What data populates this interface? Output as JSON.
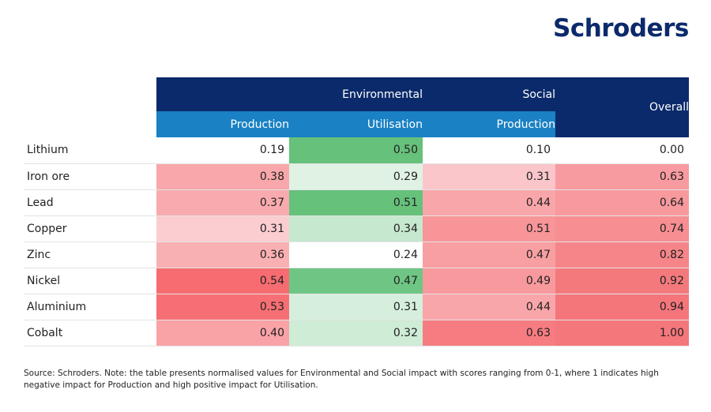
{
  "brand": {
    "logo_text": "Schroders",
    "colors": {
      "navy": "#0b2a6b",
      "blue": "#1a81c4"
    }
  },
  "chart_data": {
    "type": "table",
    "group_headers": [
      "Environmental",
      "Social",
      "Overall"
    ],
    "columns": [
      "Production",
      "Utilisation",
      "Production",
      "Overall"
    ],
    "rows": [
      "Lithium",
      "Iron ore",
      "Lead",
      "Copper",
      "Zinc",
      "Nickel",
      "Aluminium",
      "Cobalt"
    ],
    "values": [
      [
        "0.19",
        "0.50",
        "0.10",
        "0.00"
      ],
      [
        "0.38",
        "0.29",
        "0.31",
        "0.63"
      ],
      [
        "0.37",
        "0.51",
        "0.44",
        "0.64"
      ],
      [
        "0.31",
        "0.34",
        "0.51",
        "0.74"
      ],
      [
        "0.36",
        "0.24",
        "0.47",
        "0.82"
      ],
      [
        "0.54",
        "0.47",
        "0.49",
        "0.92"
      ],
      [
        "0.53",
        "0.31",
        "0.44",
        "0.94"
      ],
      [
        "0.40",
        "0.32",
        "0.63",
        "1.00"
      ]
    ],
    "cell_colors": [
      [
        "#ffffff",
        "#66c17b",
        "#ffffff",
        "#ffffff"
      ],
      [
        "#f9a7ab",
        "#dff2e4",
        "#fac6ca",
        "#f89ba0"
      ],
      [
        "#f9aaae",
        "#66c17b",
        "#f9a6aa",
        "#f8999e"
      ],
      [
        "#fbccd0",
        "#c6e8cf",
        "#f79598",
        "#f78e92"
      ],
      [
        "#f9b0b3",
        "#ffffff",
        "#f89fa2",
        "#f68589"
      ],
      [
        "#f66c71",
        "#6fc684",
        "#f8999d",
        "#f4797d"
      ],
      [
        "#f66f74",
        "#d6efdc",
        "#f9a6aa",
        "#f4767b"
      ],
      [
        "#f9a3a7",
        "#cfecd6",
        "#f67c81",
        "#f4777b"
      ]
    ]
  },
  "source_note": "Source: Schroders. Note: the table presents normalised values for Environmental and Social impact with scores ranging from 0-1, where 1 indicates high negative impact for Production and high positive impact for Utilisation."
}
